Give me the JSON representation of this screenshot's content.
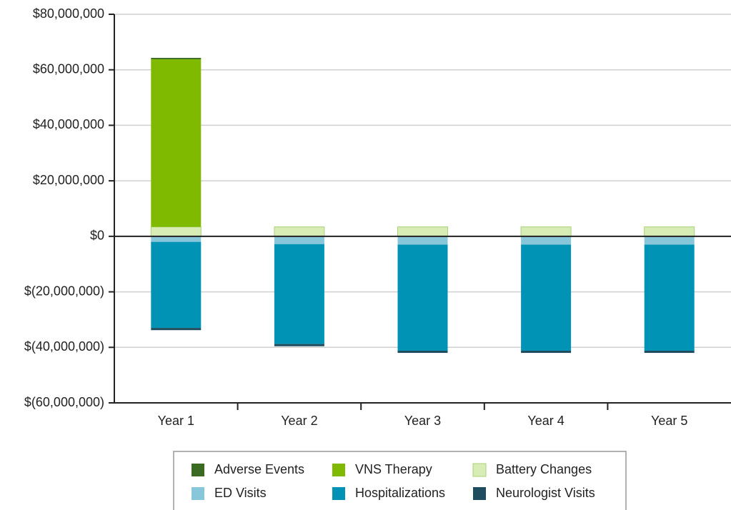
{
  "chart_data": {
    "type": "stacked_bar",
    "categories": [
      "Year 1",
      "Year 2",
      "Year 3",
      "Year 4",
      "Year 5"
    ],
    "series": [
      {
        "name": "Adverse Events",
        "color": "#3b6b23",
        "values": [
          500000,
          0,
          0,
          0,
          0
        ]
      },
      {
        "name": "VNS Therapy",
        "color": "#7fba00",
        "values": [
          60400000,
          0,
          0,
          0,
          0
        ]
      },
      {
        "name": "Battery Changes",
        "color": "#d8ecb6",
        "values": [
          3400000,
          3400000,
          3400000,
          3400000,
          3400000
        ]
      },
      {
        "name": "ED Visits",
        "color": "#88c6da",
        "values": [
          -2000000,
          -2800000,
          -3000000,
          -3000000,
          -3000000
        ]
      },
      {
        "name": "Hospitalizations",
        "color": "#0093b6",
        "values": [
          -31000000,
          -36000000,
          -38200000,
          -38200000,
          -38200000
        ]
      },
      {
        "name": "Neurologist Visits",
        "color": "#1f4c5e",
        "values": [
          -800000,
          -800000,
          -800000,
          -800000,
          -800000
        ]
      }
    ],
    "ylim": [
      -60000000,
      80000000
    ],
    "yticks": [
      {
        "value": -60000000,
        "label": "$(60,000,000)"
      },
      {
        "value": -40000000,
        "label": "$(40,000,000)"
      },
      {
        "value": -20000000,
        "label": "$(20,000,000)"
      },
      {
        "value": 0,
        "label": "$0"
      },
      {
        "value": 20000000,
        "label": "$20,000,000"
      },
      {
        "value": 40000000,
        "label": "$40,000,000"
      },
      {
        "value": 60000000,
        "label": "$60,000,000"
      },
      {
        "value": 80000000,
        "label": "$80,000,000"
      }
    ],
    "grid": true
  }
}
